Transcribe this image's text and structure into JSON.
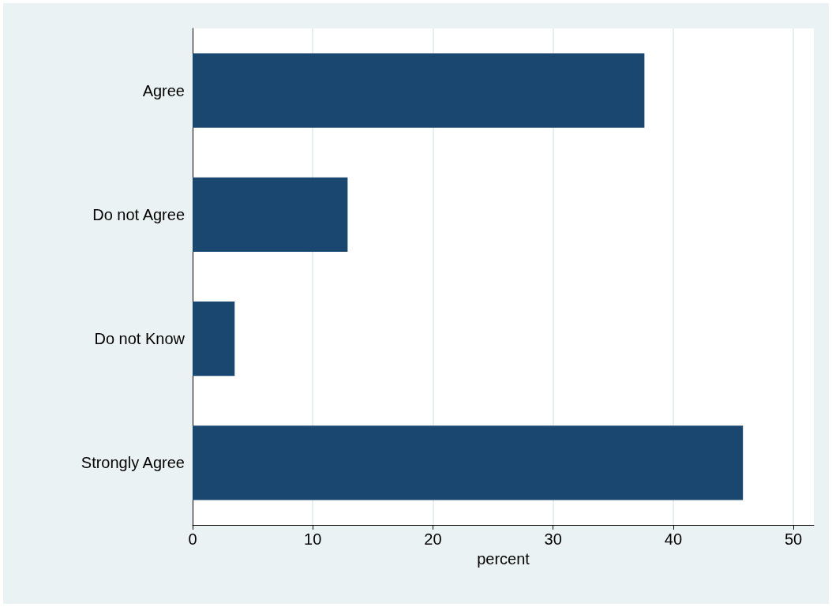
{
  "chart_data": {
    "type": "bar",
    "orientation": "horizontal",
    "xlabel": "percent",
    "categories": [
      "Agree",
      "Do not Agree",
      "Do not Know",
      "Strongly Agree"
    ],
    "values": [
      37.6,
      12.9,
      3.5,
      45.8
    ],
    "color": "#1a476f",
    "xlim": [
      0,
      51.7
    ],
    "xticks": [
      0,
      10,
      20,
      30,
      40,
      50
    ],
    "grid": "x"
  }
}
